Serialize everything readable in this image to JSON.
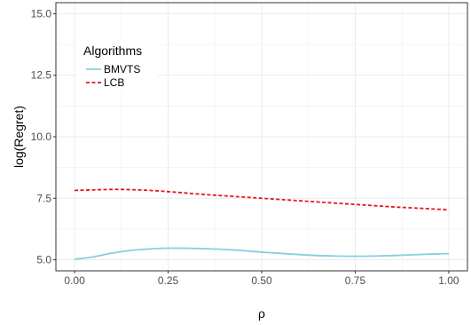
{
  "chart_data": {
    "type": "line",
    "xlabel": "ρ",
    "ylabel": "log(Regret)",
    "xlim": [
      -0.05,
      1.05
    ],
    "ylim": [
      4.55,
      15.45
    ],
    "x_ticks": [
      0.0,
      0.25,
      0.5,
      0.75,
      1.0
    ],
    "x_tick_labels": [
      "0.00",
      "0.25",
      "0.50",
      "0.75",
      "1.00"
    ],
    "y_ticks": [
      5.0,
      7.5,
      10.0,
      12.5,
      15.0
    ],
    "y_tick_labels": [
      "5.0",
      "7.5",
      "10.0",
      "12.5",
      "15.0"
    ],
    "grid": true,
    "legend": {
      "title": "Algorithms",
      "position": "top-left",
      "entries": [
        "BMVTS",
        "LCB"
      ]
    },
    "series": [
      {
        "name": "BMVTS",
        "color": "#87CEDF",
        "dash": "solid",
        "x": [
          0.0,
          0.05,
          0.1,
          0.15,
          0.2,
          0.25,
          0.3,
          0.35,
          0.4,
          0.45,
          0.5,
          0.55,
          0.6,
          0.65,
          0.7,
          0.75,
          0.8,
          0.85,
          0.9,
          0.95,
          1.0
        ],
        "y": [
          5.02,
          5.12,
          5.27,
          5.38,
          5.44,
          5.47,
          5.47,
          5.45,
          5.42,
          5.37,
          5.31,
          5.26,
          5.21,
          5.17,
          5.15,
          5.14,
          5.15,
          5.17,
          5.2,
          5.23,
          5.25
        ]
      },
      {
        "name": "LCB",
        "color": "#E8161B",
        "dash": "dashed",
        "x": [
          0.0,
          0.05,
          0.1,
          0.15,
          0.2,
          0.25,
          0.3,
          0.35,
          0.4,
          0.45,
          0.5,
          0.55,
          0.6,
          0.65,
          0.7,
          0.75,
          0.8,
          0.85,
          0.9,
          0.95,
          1.0
        ],
        "y": [
          7.82,
          7.84,
          7.86,
          7.85,
          7.82,
          7.77,
          7.71,
          7.65,
          7.6,
          7.55,
          7.5,
          7.45,
          7.4,
          7.35,
          7.3,
          7.25,
          7.2,
          7.15,
          7.11,
          7.07,
          7.03
        ]
      }
    ]
  }
}
